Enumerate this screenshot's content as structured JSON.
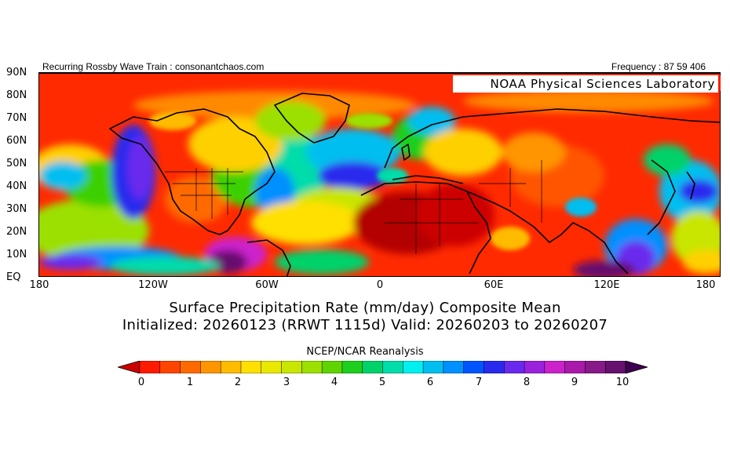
{
  "header": {
    "left_text": "Recurring Rossby Wave Train : consonantchaos.com",
    "right_text": "Frequency : 87 59 406"
  },
  "map": {
    "lab_label": "NOAA Physical Sciences Laboratory",
    "lat_labels": [
      "90N",
      "80N",
      "70N",
      "60N",
      "50N",
      "40N",
      "30N",
      "20N",
      "10N",
      "EQ"
    ],
    "lon_labels": [
      "180",
      "120W",
      "60W",
      "0",
      "60E",
      "120E",
      "180"
    ]
  },
  "titles": {
    "line1": "Surface Precipitation Rate (mm/day) Composite Mean",
    "line2": "Initialized: 20260123 (RRWT 1115d) Valid: 20260203 to 20260207",
    "source": "NCEP/NCAR Reanalysis"
  },
  "colorbar": {
    "tick_labels": [
      "0",
      "1",
      "2",
      "3",
      "4",
      "5",
      "6",
      "7",
      "8",
      "9",
      "10"
    ],
    "colors": [
      "#cc0000",
      "#ff1a00",
      "#ff4400",
      "#ff6a00",
      "#ff9500",
      "#ffbb00",
      "#ffe000",
      "#e8e800",
      "#c8e600",
      "#9be000",
      "#5fd400",
      "#1ecf1e",
      "#00d26a",
      "#00dcaa",
      "#00f0f0",
      "#00bff0",
      "#0090ff",
      "#0055ff",
      "#2a2aee",
      "#6a2aee",
      "#9a22dd",
      "#cc22cc",
      "#aa1aaa",
      "#881a88",
      "#66116e",
      "#3d0050"
    ]
  }
}
